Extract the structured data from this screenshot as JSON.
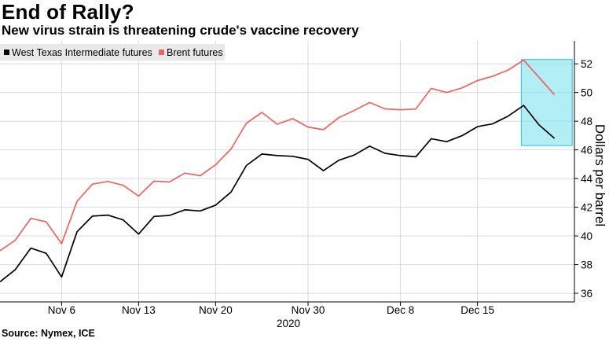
{
  "title": "End of Rally?",
  "subtitle": "New virus strain is threatening crude's vaccine recovery",
  "source": "Source: Nymex, ICE",
  "chart_data": {
    "type": "line",
    "ylabel": "Dollars per barrel",
    "xlabel": "2020",
    "ylim": [
      35.4,
      53.6
    ],
    "y_ticks": [
      36,
      38,
      40,
      42,
      44,
      46,
      48,
      50,
      52
    ],
    "x_tick_labels": [
      {
        "label": "Nov 6",
        "index": 4
      },
      {
        "label": "Nov 13",
        "index": 9
      },
      {
        "label": "Nov 20",
        "index": 14
      },
      {
        "label": "Nov 30",
        "index": 20
      },
      {
        "label": "Dec 8",
        "index": 26
      },
      {
        "label": "Dec 15",
        "index": 31
      }
    ],
    "grid": true,
    "legend_position": "top-left",
    "highlight": {
      "start_index": 34,
      "end_index": 37,
      "ymin": 46.3,
      "ymax": 52.3
    },
    "colors": {
      "wti": "#000000",
      "brent": "#f0625f",
      "highlight_fill": "#7fe3ee",
      "highlight_edge": "#2bbfd6",
      "grid": "#d9d9d9"
    },
    "series": [
      {
        "name": "West Texas Intermediate futures",
        "values": [
          36.8,
          37.66,
          39.15,
          38.79,
          37.14,
          40.29,
          41.38,
          41.45,
          41.12,
          40.13,
          41.36,
          41.43,
          41.82,
          41.74,
          42.15,
          43.06,
          44.91,
          45.71,
          45.6,
          45.55,
          45.34,
          44.55,
          45.28,
          45.64,
          46.26,
          45.76,
          45.6,
          45.52,
          46.78,
          46.57,
          46.99,
          47.62,
          47.82,
          48.36,
          49.1,
          47.74,
          46.8
        ]
      },
      {
        "name": "Brent futures",
        "values": [
          38.97,
          39.71,
          41.23,
          40.98,
          39.46,
          42.41,
          43.61,
          43.8,
          43.53,
          42.78,
          43.82,
          43.76,
          44.38,
          44.2,
          44.96,
          46.06,
          47.86,
          48.61,
          47.79,
          48.18,
          47.59,
          47.41,
          48.25,
          48.75,
          49.3,
          48.86,
          48.79,
          48.85,
          50.29,
          50.0,
          50.32,
          50.83,
          51.14,
          51.57,
          52.26,
          51.05,
          49.84
        ]
      }
    ]
  }
}
